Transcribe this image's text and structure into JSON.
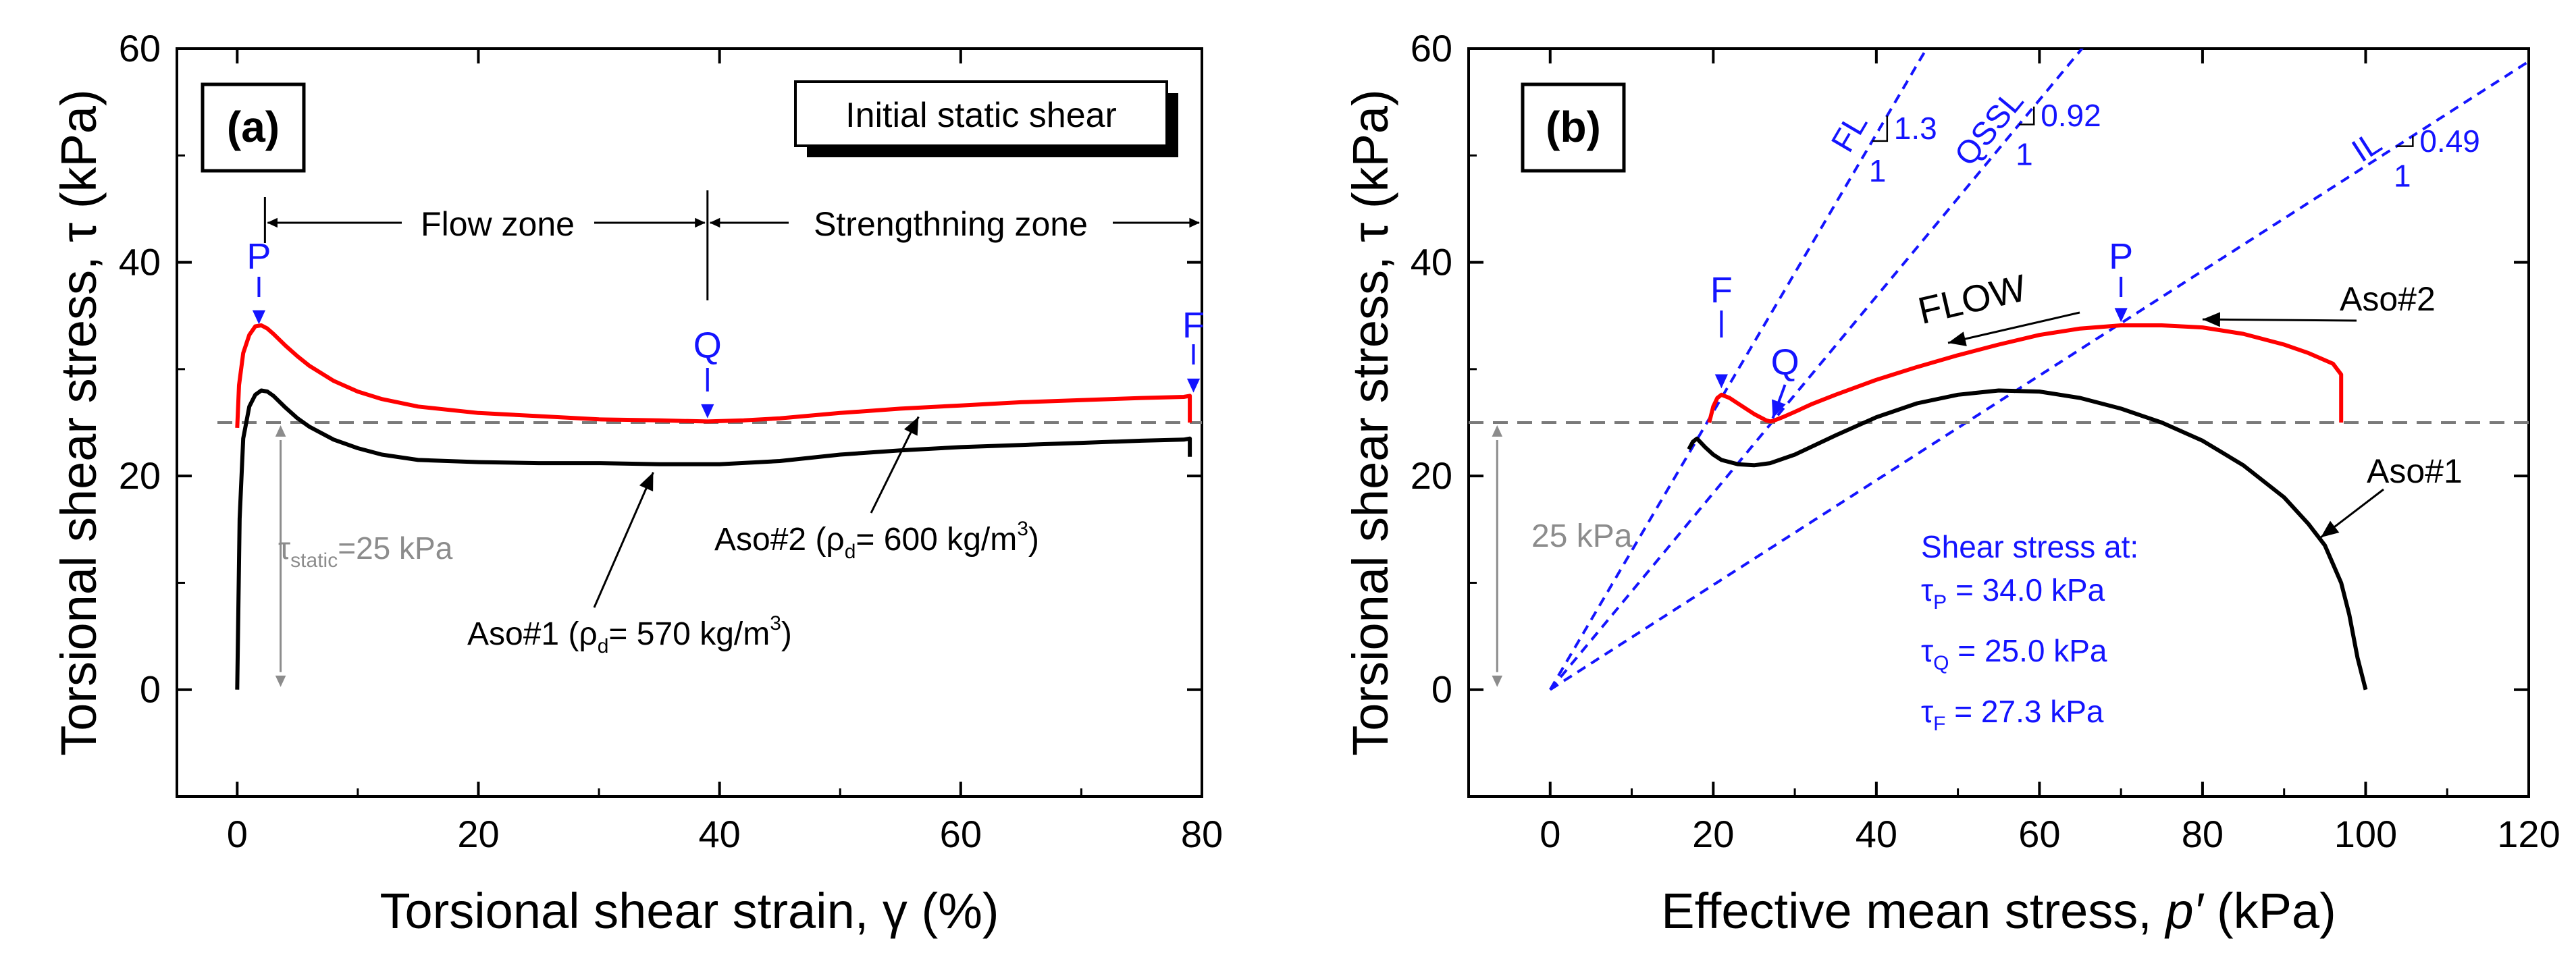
{
  "colors": {
    "red": "#ff0000",
    "black": "#000000",
    "blue": "#1414ff",
    "gray": "#8c8c8c",
    "dash": "#7a7a7a"
  },
  "chart_data": [
    {
      "id": "a",
      "type": "line",
      "panel_label": "(a)",
      "xlabel_main": "Torsional shear strain, ",
      "xlabel_sym": "γ",
      "xlabel_unit": " (%)",
      "ylabel_main": "Torsional shear stress, ",
      "ylabel_sym": "τ",
      "ylabel_unit": " (kPa)",
      "xlim": [
        -5,
        80
      ],
      "ylim": [
        -10,
        60
      ],
      "xticks": [
        0,
        20,
        40,
        60,
        80
      ],
      "yticks": [
        0,
        20,
        40,
        60
      ],
      "legend_box": "Initial static shear",
      "tau_static": 25,
      "series": [
        {
          "name": "Aso#2 (ρd = 600 kg/m3)",
          "color": "red",
          "x": [
            0,
            0.15,
            0.5,
            1,
            1.5,
            2,
            2.5,
            3,
            4,
            5,
            6,
            8,
            10,
            12,
            15,
            20,
            25,
            30,
            35,
            39,
            42,
            45,
            50,
            55,
            60,
            65,
            70,
            75,
            78.5,
            79,
            79
          ],
          "y": [
            24.5,
            28.5,
            31.5,
            33.2,
            34,
            34.1,
            33.8,
            33.3,
            32.2,
            31.2,
            30.3,
            28.9,
            27.9,
            27.2,
            26.5,
            25.9,
            25.6,
            25.3,
            25.2,
            25.1,
            25.2,
            25.4,
            25.9,
            26.3,
            26.6,
            26.9,
            27.1,
            27.3,
            27.4,
            27.5,
            25
          ]
        },
        {
          "name": "Aso#1 (ρd = 570 kg/m3)",
          "color": "black",
          "x": [
            0,
            0.2,
            0.5,
            1,
            1.5,
            2,
            2.5,
            3,
            4,
            5,
            6,
            8,
            10,
            12,
            15,
            20,
            25,
            30,
            35,
            40,
            45,
            50,
            55,
            60,
            65,
            70,
            75,
            78.5,
            79,
            79
          ],
          "y": [
            0,
            16,
            23.5,
            26.5,
            27.6,
            28,
            27.9,
            27.5,
            26.4,
            25.4,
            24.6,
            23.4,
            22.6,
            22,
            21.5,
            21.3,
            21.2,
            21.2,
            21.1,
            21.1,
            21.4,
            22,
            22.4,
            22.7,
            22.9,
            23.1,
            23.3,
            23.4,
            23.5,
            21.8
          ]
        }
      ],
      "annotations": {
        "P": "P",
        "Q": "Q",
        "F": "F",
        "flow_zone": "Flow zone",
        "strength_zone": "Strengthning zone",
        "tau_static_text": {
          "sym": "τ",
          "sub": "static",
          "rest": "=25 kPa"
        },
        "aso2_label": {
          "pre": "Aso#2 (",
          "sym": "ρ",
          "sub": "d",
          "mid": "= 600 kg/m",
          "sup": "3",
          "post": ")"
        },
        "aso1_label": {
          "pre": "Aso#1 (",
          "sym": "ρ",
          "sub": "d",
          "mid": "= 570 kg/m",
          "sup": "3",
          "post": ")"
        }
      }
    },
    {
      "id": "b",
      "type": "line",
      "panel_label": "(b)",
      "xlabel_main": "Effective mean stress, ",
      "xlabel_sym": "p′",
      "xlabel_unit": " (kPa)",
      "ylabel_main": "Torsional shear stress, ",
      "ylabel_sym": "τ",
      "ylabel_unit": " (kPa)",
      "xlim": [
        -10,
        120
      ],
      "ylim": [
        -10,
        60
      ],
      "xticks": [
        0,
        20,
        40,
        60,
        80,
        100,
        120
      ],
      "yticks": [
        0,
        20,
        40,
        60
      ],
      "tau_static": 25,
      "series": [
        {
          "name": "Aso#2",
          "color": "red",
          "x": [
            97,
            97,
            96,
            93,
            90,
            85,
            80,
            75,
            70,
            65,
            60,
            55,
            50,
            45,
            40,
            35,
            32,
            30,
            28.5,
            27.5,
            27,
            26.5,
            26,
            25,
            24,
            23,
            22,
            21,
            20.5,
            20,
            19.5
          ],
          "y": [
            25,
            29.5,
            30.5,
            31.5,
            32.3,
            33.3,
            33.9,
            34.1,
            34.1,
            33.8,
            33.2,
            32.3,
            31.3,
            30.2,
            29,
            27.6,
            26.7,
            26,
            25.5,
            25.2,
            25.1,
            25.2,
            25.4,
            25.8,
            26.3,
            26.8,
            27.3,
            27.6,
            27.3,
            26.5,
            25
          ]
        },
        {
          "name": "Aso#1",
          "color": "black",
          "x": [
            100,
            99,
            98,
            97,
            95,
            93,
            90,
            85,
            80,
            75,
            70,
            65,
            60,
            55,
            50,
            45,
            40,
            35,
            30,
            27,
            25,
            23,
            21,
            20,
            19,
            18,
            17.5,
            17
          ],
          "y": [
            0,
            3,
            7,
            10,
            13.5,
            15.5,
            18,
            21,
            23.3,
            25,
            26.3,
            27.3,
            27.9,
            28,
            27.6,
            26.8,
            25.5,
            23.8,
            22,
            21.2,
            21,
            21.1,
            21.5,
            22,
            22.7,
            23.5,
            23.2,
            22.5
          ]
        }
      ],
      "lines": [
        {
          "name": "FL",
          "slope": 1.3,
          "slope_text": "1.3",
          "run_text": "1"
        },
        {
          "name": "QSSL",
          "slope": 0.92,
          "slope_text": "0.92",
          "run_text": "1"
        },
        {
          "name": "IL",
          "slope": 0.49,
          "slope_text": "0.49",
          "run_text": "1"
        }
      ],
      "annotations": {
        "P": "P",
        "Q": "Q",
        "F": "F",
        "flow": "FLOW",
        "aso2": "Aso#2",
        "aso1": "Aso#1",
        "static_text": "25 kPa",
        "shear_header": "Shear stress at:",
        "tau_p": {
          "sym": "τ",
          "sub": "P",
          "rest": " = 34.0 kPa"
        },
        "tau_q": {
          "sym": "τ",
          "sub": "Q",
          "rest": " = 25.0 kPa"
        },
        "tau_f": {
          "sym": "τ",
          "sub": "F",
          "rest": " = 27.3 kPa"
        }
      }
    }
  ]
}
